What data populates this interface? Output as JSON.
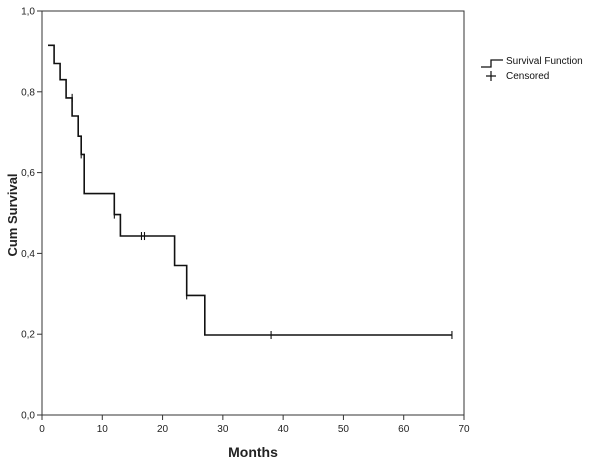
{
  "chart_data": {
    "type": "line",
    "title": "",
    "xlabel": "Months",
    "ylabel": "Cum Survival",
    "xlim": [
      0,
      70
    ],
    "ylim": [
      0,
      1
    ],
    "x_ticks": [
      0,
      10,
      20,
      30,
      40,
      50,
      60,
      70
    ],
    "y_ticks": [
      0,
      0.2,
      0.4,
      0.6,
      0.8,
      1.0
    ],
    "x_tick_labels": [
      "0",
      "10",
      "20",
      "30",
      "40",
      "50",
      "60",
      "70"
    ],
    "y_tick_labels": [
      "0,0",
      "0,2",
      "0,4",
      "0,6",
      "0,8",
      "1,0"
    ],
    "grid": false,
    "legend_position": "right",
    "legend": [
      "Survival Function",
      "Censored"
    ],
    "series": [
      {
        "name": "Survival Function",
        "style": "step",
        "points": [
          [
            1,
            0.915
          ],
          [
            2,
            0.915
          ],
          [
            2,
            0.87
          ],
          [
            3,
            0.87
          ],
          [
            3,
            0.83
          ],
          [
            4,
            0.83
          ],
          [
            4,
            0.785
          ],
          [
            5,
            0.785
          ],
          [
            5,
            0.74
          ],
          [
            6,
            0.74
          ],
          [
            6,
            0.69
          ],
          [
            6.5,
            0.69
          ],
          [
            6.5,
            0.645
          ],
          [
            7,
            0.645
          ],
          [
            7,
            0.548
          ],
          [
            12,
            0.548
          ],
          [
            12,
            0.496
          ],
          [
            13,
            0.496
          ],
          [
            13,
            0.443
          ],
          [
            22,
            0.443
          ],
          [
            22,
            0.37
          ],
          [
            24,
            0.37
          ],
          [
            24,
            0.296
          ],
          [
            27,
            0.296
          ],
          [
            27,
            0.198
          ],
          [
            68,
            0.198
          ]
        ]
      },
      {
        "name": "Censored",
        "style": "marker",
        "points": [
          [
            5,
            0.785
          ],
          [
            6.5,
            0.645
          ],
          [
            12,
            0.496
          ],
          [
            16.5,
            0.443
          ],
          [
            17,
            0.443
          ],
          [
            24,
            0.296
          ],
          [
            38,
            0.198
          ],
          [
            68,
            0.198
          ]
        ]
      }
    ]
  }
}
